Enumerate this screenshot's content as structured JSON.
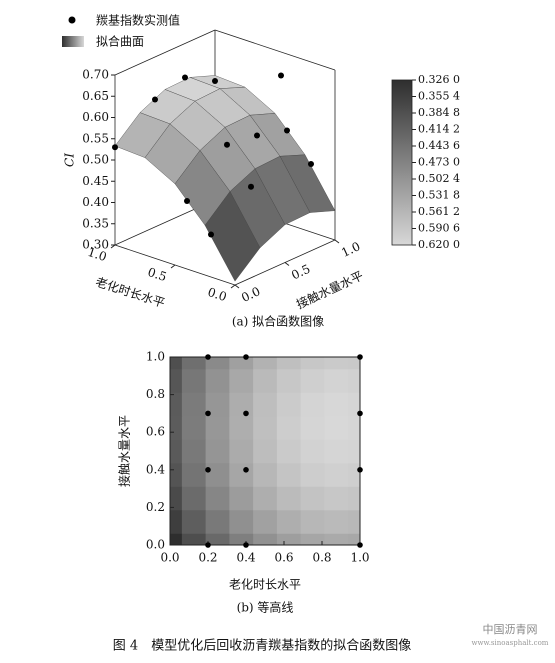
{
  "figure_caption": "图 4　模型优化后回收沥青羰基指数的拟合函数图像",
  "watermark": {
    "title": "中国沥青网",
    "url": "www.sinoasphalt.com"
  },
  "chart_data": [
    {
      "type": "surface3d",
      "caption": "(a) 拟合函数图像",
      "xlabel": "老化时长水平",
      "ylabel": "接触水量水平",
      "zlabel": "CI",
      "xlim": [
        0,
        1
      ],
      "ylim": [
        0,
        1
      ],
      "zlim": [
        0.3,
        0.7
      ],
      "xticks": [
        {
          "value": 0,
          "label": "0.0"
        },
        0.5,
        {
          "value": 1,
          "label": "1.0"
        }
      ],
      "yticks": [
        {
          "value": 0,
          "label": "0.0"
        },
        0.5,
        {
          "value": 1,
          "label": "1.0"
        }
      ],
      "zticks": [
        {
          "value": 0.3,
          "label": "0.30"
        },
        0.35,
        {
          "value": 0.4,
          "label": "0.40"
        },
        0.45,
        {
          "value": 0.5,
          "label": "0.50"
        },
        0.55,
        {
          "value": 0.6,
          "label": "0.60"
        },
        0.65,
        {
          "value": 0.7,
          "label": "0.70"
        }
      ],
      "surface": {
        "name": "拟合曲面",
        "x": [
          0,
          0.25,
          0.5,
          0.75,
          1
        ],
        "y": [
          0,
          0.25,
          0.5,
          0.75,
          1
        ],
        "z": [
          [
            0.309,
            0.417,
            0.491,
            0.529,
            0.533
          ],
          [
            0.361,
            0.47,
            0.543,
            0.582,
            0.585
          ],
          [
            0.389,
            0.497,
            0.571,
            0.609,
            0.613
          ],
          [
            0.391,
            0.5,
            0.573,
            0.612,
            0.615
          ],
          [
            0.369,
            0.477,
            0.551,
            0.589,
            0.593
          ]
        ]
      },
      "points": {
        "name": "羰基指数实测值",
        "color": "#000000",
        "x": [
          0.2,
          0.2,
          0.2,
          0.2,
          0.4,
          0.4,
          0.4,
          0.4,
          1,
          1,
          1,
          1
        ],
        "y": [
          0,
          0.4,
          0.7,
          1,
          0,
          0.4,
          0.7,
          1,
          0,
          0.4,
          0.7,
          1
        ],
        "z": [
          0.4,
          0.47,
          0.7,
          0.46,
          0.46,
          0.55,
          0.54,
          0.52,
          0.53,
          0.6,
          0.62,
          0.58
        ]
      },
      "colormap": [
        "#2e2e2e",
        "#d8d8d8"
      ],
      "colorbar": {
        "ticks": [
          {
            "value": 0.326,
            "label": "0.326 0"
          },
          {
            "value": 0.3554,
            "label": "0.355 4"
          },
          {
            "value": 0.3848,
            "label": "0.384 8"
          },
          {
            "value": 0.4142,
            "label": "0.414 2"
          },
          {
            "value": 0.4436,
            "label": "0.443 6"
          },
          {
            "value": 0.473,
            "label": "0.473 0"
          },
          {
            "value": 0.5024,
            "label": "0.502 4"
          },
          {
            "value": 0.5318,
            "label": "0.531 8"
          },
          {
            "value": 0.5612,
            "label": "0.561 2"
          },
          {
            "value": 0.5906,
            "label": "0.590 6"
          },
          {
            "value": 0.62,
            "label": "0.620 0"
          }
        ]
      }
    },
    {
      "type": "contour",
      "caption": "(b) 等高线",
      "xlabel": "老化时长水平",
      "ylabel": "接触水量水平",
      "xlim": [
        0,
        1
      ],
      "ylim": [
        0,
        1
      ],
      "xticks": [
        {
          "value": 0,
          "label": "0.0"
        },
        0.2,
        0.4,
        0.6,
        0.8,
        {
          "value": 1,
          "label": "1.0"
        }
      ],
      "yticks": [
        {
          "value": 0,
          "label": "0.0"
        },
        0.2,
        0.4,
        0.6,
        0.8,
        {
          "value": 1,
          "label": "1.0"
        }
      ],
      "colormap": [
        "#2e2e2e",
        "#d8d8d8"
      ],
      "field": {
        "x": [
          0,
          0.125,
          0.25,
          0.375,
          0.5,
          0.625,
          0.75,
          0.875,
          1
        ],
        "y": [
          0,
          0.125,
          0.25,
          0.375,
          0.5,
          0.625,
          0.75,
          0.875,
          1
        ],
        "z": [
          [
            0.309,
            0.367,
            0.417,
            0.458,
            0.491,
            0.514,
            0.529,
            0.535,
            0.533
          ],
          [
            0.338,
            0.397,
            0.447,
            0.488,
            0.52,
            0.544,
            0.559,
            0.565,
            0.562
          ],
          [
            0.361,
            0.42,
            0.47,
            0.511,
            0.543,
            0.567,
            0.582,
            0.588,
            0.585
          ],
          [
            0.378,
            0.437,
            0.487,
            0.528,
            0.56,
            0.584,
            0.599,
            0.605,
            0.602
          ],
          [
            0.389,
            0.447,
            0.497,
            0.538,
            0.571,
            0.594,
            0.609,
            0.615,
            0.613
          ],
          [
            0.393,
            0.452,
            0.502,
            0.543,
            0.575,
            0.599,
            0.614,
            0.62,
            0.617
          ],
          [
            0.391,
            0.45,
            0.5,
            0.541,
            0.573,
            0.597,
            0.612,
            0.618,
            0.615
          ],
          [
            0.383,
            0.442,
            0.492,
            0.533,
            0.565,
            0.589,
            0.604,
            0.61,
            0.607
          ],
          [
            0.369,
            0.427,
            0.477,
            0.518,
            0.551,
            0.574,
            0.589,
            0.595,
            0.593
          ]
        ]
      },
      "points": {
        "color": "#000000",
        "x": [
          0.2,
          0.2,
          0.2,
          0.2,
          0.4,
          0.4,
          0.4,
          0.4,
          1,
          1,
          1,
          1
        ],
        "y": [
          0,
          0.4,
          0.7,
          1,
          0,
          0.4,
          0.7,
          1,
          0,
          0.4,
          0.7,
          1
        ]
      }
    }
  ]
}
